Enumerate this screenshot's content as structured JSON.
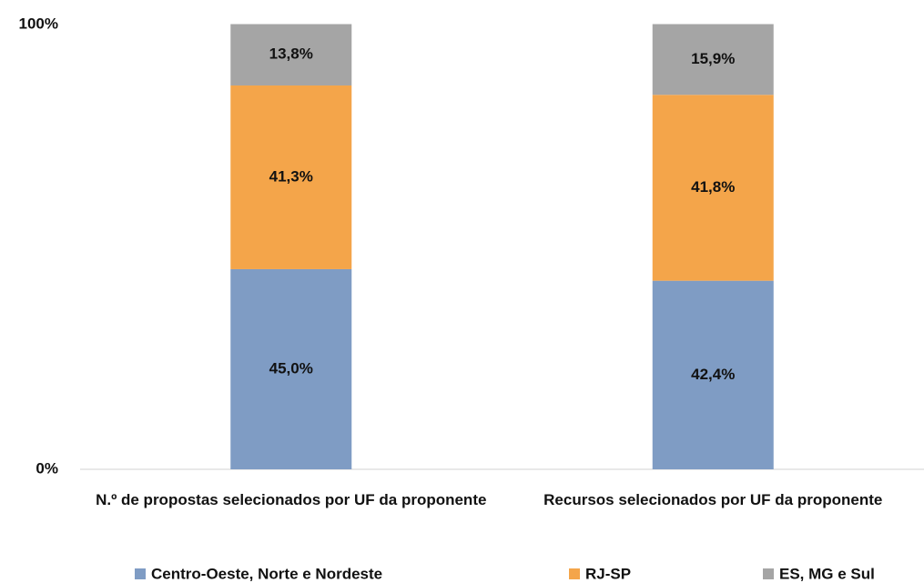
{
  "chart_data": {
    "type": "stacked_bar",
    "categories": [
      "N.º de propostas selecionados por UF da proponente",
      "Recursos selecionados por UF da proponente"
    ],
    "series": [
      {
        "name": "Centro-Oeste, Norte e Nordeste",
        "color": "#7f9cc4",
        "values": [
          45.0,
          42.4
        ],
        "value_labels": [
          "45,0%",
          "42,4%"
        ]
      },
      {
        "name": "RJ-SP",
        "color": "#f4a54a",
        "values": [
          41.3,
          41.8
        ],
        "value_labels": [
          "41,3%",
          "41,8%"
        ]
      },
      {
        "name": "ES, MG e Sul",
        "color": "#a5a5a5",
        "values": [
          13.8,
          15.9
        ],
        "value_labels": [
          "13,8%",
          "15,9%"
        ]
      }
    ],
    "ylim": [
      0,
      100
    ],
    "yticks": [
      {
        "value": 0,
        "label": "0%"
      },
      {
        "value": 100,
        "label": "100%"
      }
    ],
    "grid": false,
    "legend": "bottom"
  }
}
